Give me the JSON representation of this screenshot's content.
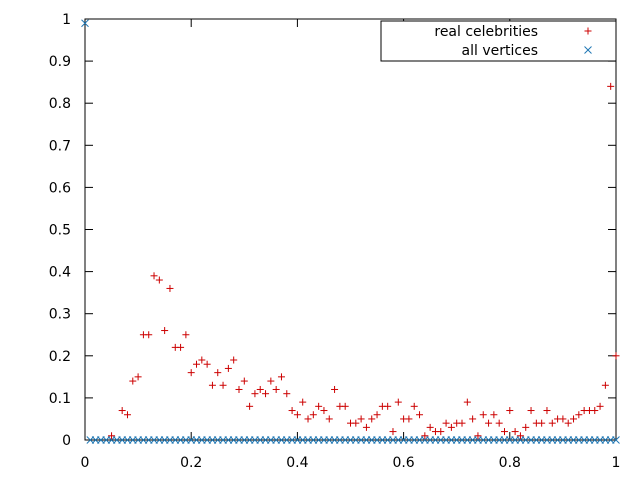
{
  "chart_data": {
    "type": "scatter",
    "title": "",
    "xlabel": "",
    "ylabel": "",
    "xlim": [
      0,
      1
    ],
    "ylim": [
      0,
      1
    ],
    "x_ticks": [
      "0",
      "0.2",
      "0.4",
      "0.6",
      "0.8",
      "1"
    ],
    "y_ticks": [
      "0",
      "0.1",
      "0.2",
      "0.3",
      "0.4",
      "0.5",
      "0.6",
      "0.7",
      "0.8",
      "0.9",
      "1"
    ],
    "grid": false,
    "legend_position": "top-right",
    "series": [
      {
        "name": "real celebrities",
        "marker": "plus",
        "color": "#cc0000",
        "points": [
          [
            0.05,
            0.01
          ],
          [
            0.07,
            0.07
          ],
          [
            0.08,
            0.06
          ],
          [
            0.09,
            0.14
          ],
          [
            0.1,
            0.15
          ],
          [
            0.11,
            0.25
          ],
          [
            0.12,
            0.25
          ],
          [
            0.13,
            0.39
          ],
          [
            0.14,
            0.38
          ],
          [
            0.15,
            0.26
          ],
          [
            0.16,
            0.36
          ],
          [
            0.17,
            0.22
          ],
          [
            0.18,
            0.22
          ],
          [
            0.19,
            0.25
          ],
          [
            0.2,
            0.16
          ],
          [
            0.21,
            0.18
          ],
          [
            0.22,
            0.19
          ],
          [
            0.23,
            0.18
          ],
          [
            0.24,
            0.13
          ],
          [
            0.25,
            0.16
          ],
          [
            0.26,
            0.13
          ],
          [
            0.27,
            0.17
          ],
          [
            0.28,
            0.19
          ],
          [
            0.29,
            0.12
          ],
          [
            0.3,
            0.14
          ],
          [
            0.31,
            0.08
          ],
          [
            0.32,
            0.11
          ],
          [
            0.33,
            0.12
          ],
          [
            0.34,
            0.11
          ],
          [
            0.35,
            0.14
          ],
          [
            0.36,
            0.12
          ],
          [
            0.37,
            0.15
          ],
          [
            0.38,
            0.11
          ],
          [
            0.39,
            0.07
          ],
          [
            0.4,
            0.06
          ],
          [
            0.41,
            0.09
          ],
          [
            0.42,
            0.05
          ],
          [
            0.43,
            0.06
          ],
          [
            0.44,
            0.08
          ],
          [
            0.45,
            0.07
          ],
          [
            0.46,
            0.05
          ],
          [
            0.47,
            0.12
          ],
          [
            0.48,
            0.08
          ],
          [
            0.49,
            0.08
          ],
          [
            0.5,
            0.04
          ],
          [
            0.51,
            0.04
          ],
          [
            0.52,
            0.05
          ],
          [
            0.53,
            0.03
          ],
          [
            0.54,
            0.05
          ],
          [
            0.55,
            0.06
          ],
          [
            0.56,
            0.08
          ],
          [
            0.57,
            0.08
          ],
          [
            0.58,
            0.02
          ],
          [
            0.59,
            0.09
          ],
          [
            0.6,
            0.05
          ],
          [
            0.61,
            0.05
          ],
          [
            0.62,
            0.08
          ],
          [
            0.63,
            0.06
          ],
          [
            0.64,
            0.01
          ],
          [
            0.65,
            0.03
          ],
          [
            0.66,
            0.02
          ],
          [
            0.67,
            0.02
          ],
          [
            0.68,
            0.04
          ],
          [
            0.69,
            0.03
          ],
          [
            0.7,
            0.04
          ],
          [
            0.71,
            0.04
          ],
          [
            0.72,
            0.09
          ],
          [
            0.73,
            0.05
          ],
          [
            0.74,
            0.01
          ],
          [
            0.75,
            0.06
          ],
          [
            0.76,
            0.04
          ],
          [
            0.77,
            0.06
          ],
          [
            0.78,
            0.04
          ],
          [
            0.79,
            0.02
          ],
          [
            0.8,
            0.07
          ],
          [
            0.81,
            0.02
          ],
          [
            0.82,
            0.01
          ],
          [
            0.83,
            0.03
          ],
          [
            0.84,
            0.07
          ],
          [
            0.85,
            0.04
          ],
          [
            0.86,
            0.04
          ],
          [
            0.87,
            0.07
          ],
          [
            0.88,
            0.04
          ],
          [
            0.89,
            0.05
          ],
          [
            0.9,
            0.05
          ],
          [
            0.91,
            0.04
          ],
          [
            0.92,
            0.05
          ],
          [
            0.93,
            0.06
          ],
          [
            0.94,
            0.07
          ],
          [
            0.95,
            0.07
          ],
          [
            0.96,
            0.07
          ],
          [
            0.97,
            0.08
          ],
          [
            0.98,
            0.13
          ],
          [
            0.99,
            0.84
          ],
          [
            1.0,
            0.2
          ]
        ]
      },
      {
        "name": "all vertices",
        "marker": "cross",
        "color": "#1f77b4",
        "points": [
          [
            0.0,
            0.99
          ],
          [
            0.01,
            0.0
          ],
          [
            0.02,
            0.0
          ],
          [
            0.03,
            0.0
          ],
          [
            0.04,
            0.0
          ],
          [
            0.05,
            0.0
          ],
          [
            0.06,
            0.0
          ],
          [
            0.07,
            0.0
          ],
          [
            0.08,
            0.0
          ],
          [
            0.09,
            0.0
          ],
          [
            0.1,
            0.0
          ],
          [
            0.11,
            0.0
          ],
          [
            0.12,
            0.0
          ],
          [
            0.13,
            0.0
          ],
          [
            0.14,
            0.0
          ],
          [
            0.15,
            0.0
          ],
          [
            0.16,
            0.0
          ],
          [
            0.17,
            0.0
          ],
          [
            0.18,
            0.0
          ],
          [
            0.19,
            0.0
          ],
          [
            0.2,
            0.0
          ],
          [
            0.21,
            0.0
          ],
          [
            0.22,
            0.0
          ],
          [
            0.23,
            0.0
          ],
          [
            0.24,
            0.0
          ],
          [
            0.25,
            0.0
          ],
          [
            0.26,
            0.0
          ],
          [
            0.27,
            0.0
          ],
          [
            0.28,
            0.0
          ],
          [
            0.29,
            0.0
          ],
          [
            0.3,
            0.0
          ],
          [
            0.31,
            0.0
          ],
          [
            0.32,
            0.0
          ],
          [
            0.33,
            0.0
          ],
          [
            0.34,
            0.0
          ],
          [
            0.35,
            0.0
          ],
          [
            0.36,
            0.0
          ],
          [
            0.37,
            0.0
          ],
          [
            0.38,
            0.0
          ],
          [
            0.39,
            0.0
          ],
          [
            0.4,
            0.0
          ],
          [
            0.41,
            0.0
          ],
          [
            0.42,
            0.0
          ],
          [
            0.43,
            0.0
          ],
          [
            0.44,
            0.0
          ],
          [
            0.45,
            0.0
          ],
          [
            0.46,
            0.0
          ],
          [
            0.47,
            0.0
          ],
          [
            0.48,
            0.0
          ],
          [
            0.49,
            0.0
          ],
          [
            0.5,
            0.0
          ],
          [
            0.51,
            0.0
          ],
          [
            0.52,
            0.0
          ],
          [
            0.53,
            0.0
          ],
          [
            0.54,
            0.0
          ],
          [
            0.55,
            0.0
          ],
          [
            0.56,
            0.0
          ],
          [
            0.57,
            0.0
          ],
          [
            0.58,
            0.0
          ],
          [
            0.59,
            0.0
          ],
          [
            0.6,
            0.0
          ],
          [
            0.61,
            0.0
          ],
          [
            0.62,
            0.0
          ],
          [
            0.63,
            0.0
          ],
          [
            0.64,
            0.0
          ],
          [
            0.65,
            0.0
          ],
          [
            0.66,
            0.0
          ],
          [
            0.67,
            0.0
          ],
          [
            0.68,
            0.0
          ],
          [
            0.69,
            0.0
          ],
          [
            0.7,
            0.0
          ],
          [
            0.71,
            0.0
          ],
          [
            0.72,
            0.0
          ],
          [
            0.73,
            0.0
          ],
          [
            0.74,
            0.0
          ],
          [
            0.75,
            0.0
          ],
          [
            0.76,
            0.0
          ],
          [
            0.77,
            0.0
          ],
          [
            0.78,
            0.0
          ],
          [
            0.79,
            0.0
          ],
          [
            0.8,
            0.0
          ],
          [
            0.81,
            0.0
          ],
          [
            0.82,
            0.0
          ],
          [
            0.83,
            0.0
          ],
          [
            0.84,
            0.0
          ],
          [
            0.85,
            0.0
          ],
          [
            0.86,
            0.0
          ],
          [
            0.87,
            0.0
          ],
          [
            0.88,
            0.0
          ],
          [
            0.89,
            0.0
          ],
          [
            0.9,
            0.0
          ],
          [
            0.91,
            0.0
          ],
          [
            0.92,
            0.0
          ],
          [
            0.93,
            0.0
          ],
          [
            0.94,
            0.0
          ],
          [
            0.95,
            0.0
          ],
          [
            0.96,
            0.0
          ],
          [
            0.97,
            0.0
          ],
          [
            0.98,
            0.0
          ],
          [
            0.99,
            0.0
          ],
          [
            1.0,
            0.0
          ]
        ]
      }
    ]
  }
}
